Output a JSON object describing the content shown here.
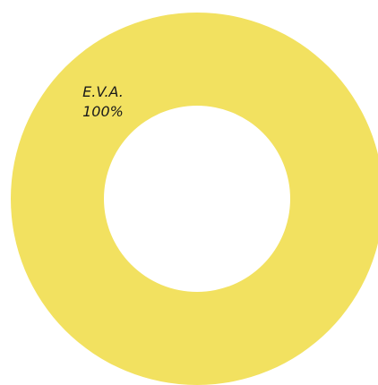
{
  "chart_data": {
    "type": "pie",
    "variant": "donut",
    "title": "",
    "slices": [
      {
        "label": "E.V.A.",
        "value": 100,
        "value_label": "100%",
        "color": "#f2e160"
      }
    ]
  }
}
